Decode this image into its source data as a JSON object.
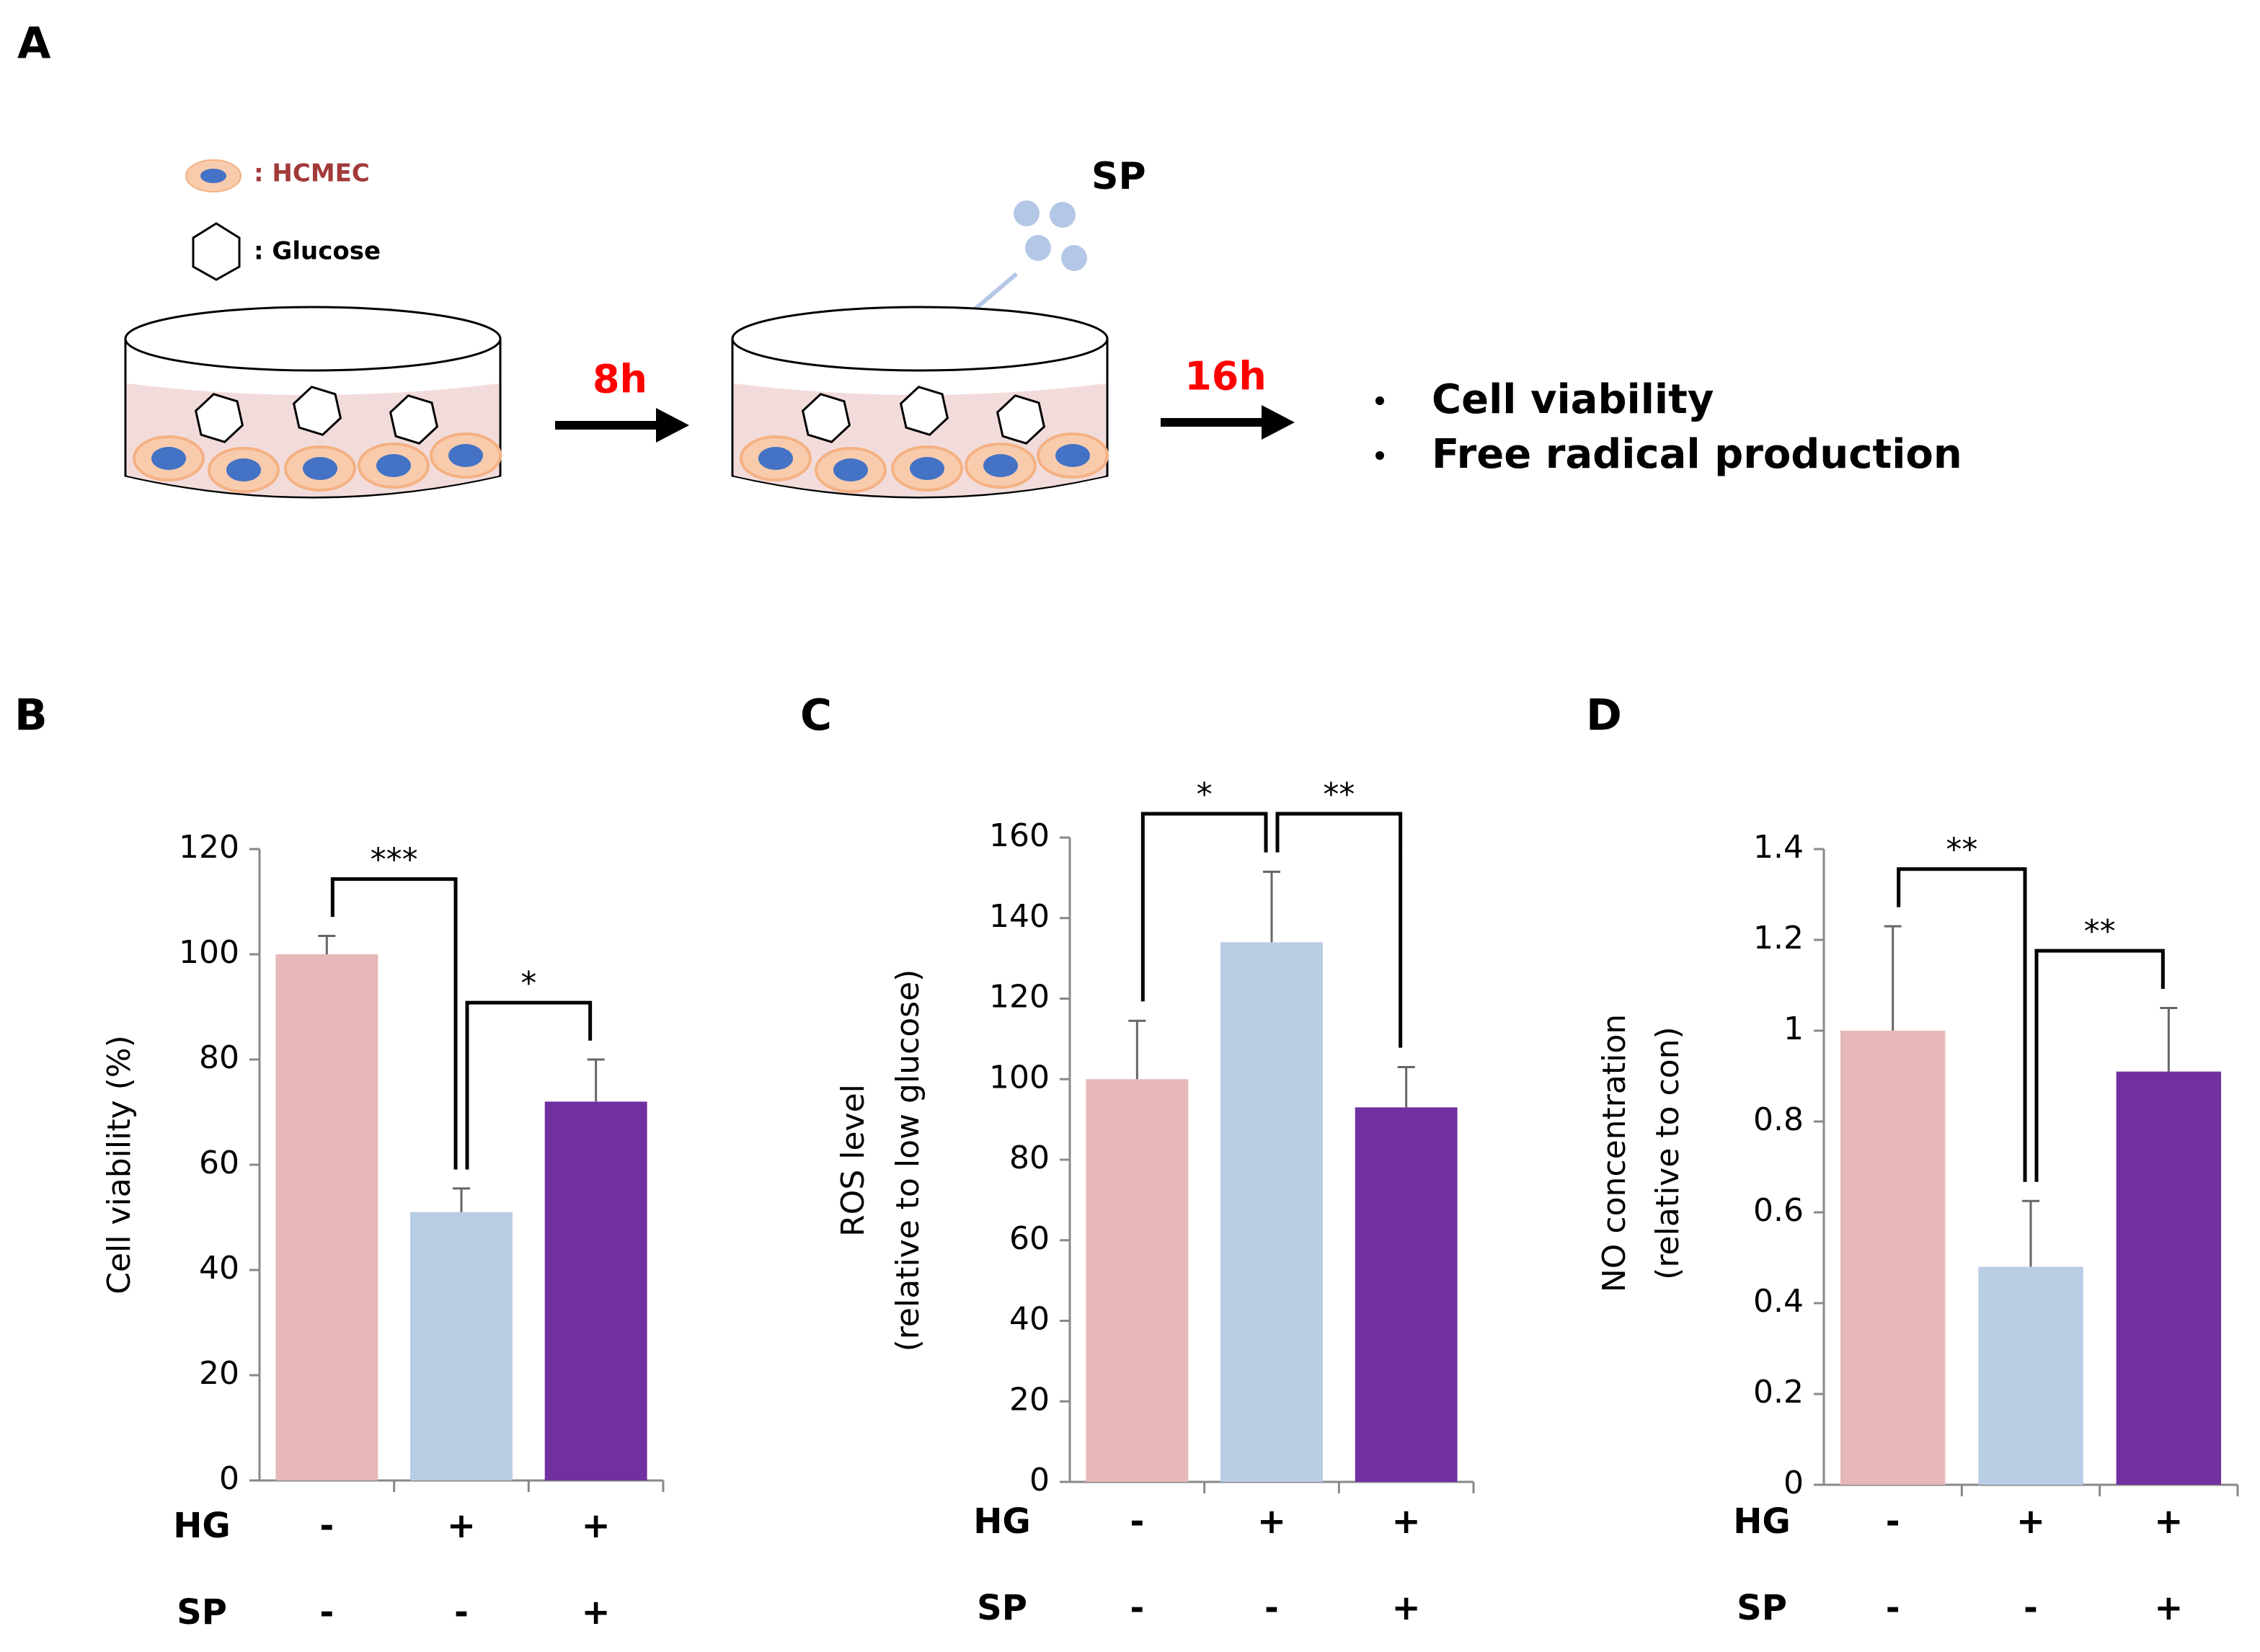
{
  "panel_labels": [
    "A",
    "B",
    "C",
    "D"
  ],
  "diagram": {
    "legend": [
      ": HCMEC",
      ": Glucose"
    ],
    "reagent": "SP",
    "steps": [
      "8h",
      "16h"
    ],
    "outcomes": [
      "Cell viability",
      "Free radical production"
    ]
  },
  "chart_data": [
    {
      "type": "bar",
      "ylabel": [
        "Cell viability (%)"
      ],
      "values": [
        100,
        51,
        72
      ],
      "errors": [
        3.5,
        4.5,
        8
      ],
      "colors": [
        "#e6b8b7",
        "#b9cde5",
        "#7030a0"
      ],
      "ylim": [
        0,
        120
      ],
      "yticks": [
        0,
        20,
        40,
        60,
        80,
        100,
        120
      ],
      "conditions": [
        {
          "name": "HG",
          "signs": [
            "-",
            "+",
            "+"
          ]
        },
        {
          "name": "SP",
          "signs": [
            "-",
            "-",
            "+"
          ]
        }
      ],
      "significance": [
        "***",
        "*"
      ]
    },
    {
      "type": "bar",
      "ylabel": [
        "ROS level",
        "(relative to low glucose)"
      ],
      "values": [
        100,
        134,
        93
      ],
      "errors": [
        14.5,
        17.5,
        10
      ],
      "colors": [
        "#e6b8b7",
        "#b9cde5",
        "#7030a0"
      ],
      "ylim": [
        0,
        160
      ],
      "yticks": [
        0,
        20,
        40,
        60,
        80,
        100,
        120,
        140,
        160
      ],
      "conditions": [
        {
          "name": "HG",
          "signs": [
            "-",
            "+",
            "+"
          ]
        },
        {
          "name": "SP",
          "signs": [
            "-",
            "-",
            "+"
          ]
        }
      ],
      "significance": [
        "*",
        "**"
      ]
    },
    {
      "type": "bar",
      "ylabel": [
        "NO concentration",
        "(relative to con)"
      ],
      "values": [
        1.0,
        0.48,
        0.91
      ],
      "errors": [
        0.23,
        0.145,
        0.14
      ],
      "colors": [
        "#e6b8b7",
        "#b9cde5",
        "#7030a0"
      ],
      "ylim": [
        0,
        1.4
      ],
      "yticks": [
        0,
        0.2,
        0.4,
        0.6,
        0.8,
        1,
        1.2,
        1.4
      ],
      "conditions": [
        {
          "name": "HG",
          "signs": [
            "-",
            "+",
            "+"
          ]
        },
        {
          "name": "SP",
          "signs": [
            "-",
            "-",
            "+"
          ]
        }
      ],
      "significance": [
        "**",
        "**"
      ]
    }
  ]
}
